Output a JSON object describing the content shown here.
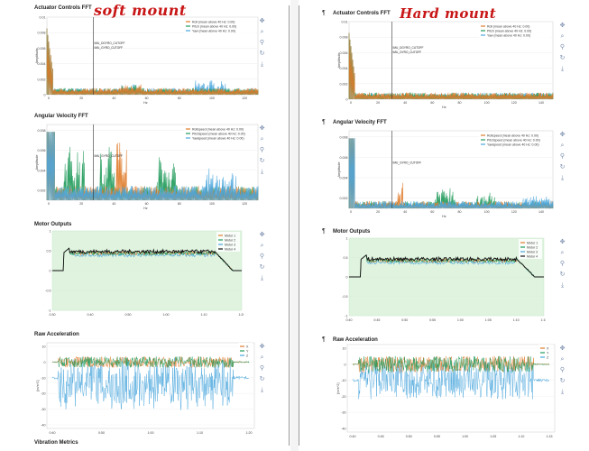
{
  "annotations": {
    "left": "soft mount",
    "right": "Hard mount"
  },
  "pilcrow": "¶",
  "bottom_section_title": "Vibration Metrics",
  "toolbar_icons": [
    "pan-icon",
    "zoom-icon",
    "wheel-zoom-icon",
    "reset-icon",
    "save-icon"
  ],
  "toolbar_glyphs": [
    "✥",
    "⌕",
    "⚲",
    "↻",
    "⤓"
  ],
  "colors": {
    "orange": "#e07b2a",
    "green": "#1f9a5a",
    "blue": "#4aa6dd",
    "black": "#111111",
    "cutoff": "#333333",
    "shade": "#dff3df"
  },
  "left": {
    "panels": [
      {
        "id": "actuator-fft",
        "title": "Actuator Controls FFT",
        "ylabel": "Amplitude",
        "xlabel": "Hz",
        "yticks": [
          "0.01",
          "0.008",
          "0.006",
          "0.004",
          "0.002",
          "0"
        ],
        "xticks": [
          "0",
          "20",
          "40",
          "60",
          "80",
          "100",
          "120"
        ],
        "legend": [
          "Roll (mean above 40 Hz: 0.00)",
          "Pitch (mean above 40 Hz: 0.00)",
          "Yaw (mean above 40 Hz: 0.00)"
        ],
        "cutoff_labels": [
          "IMU_DGYRO_CUTOFF",
          "IMU_GYRO_CUTOFF"
        ]
      },
      {
        "id": "angular-velocity-fft",
        "title": "Angular Velocity FFT",
        "ylabel": "Amplitude",
        "xlabel": "Hz",
        "yticks": [
          "0.008",
          "0.006",
          "0.004",
          "0.002"
        ],
        "xticks": [
          "0",
          "20",
          "40",
          "60",
          "80",
          "100",
          "120"
        ],
        "legend": [
          "Rollspeed (mean above 40 Hz: 0.00)",
          "Pitchspeed (mean above 40 Hz: 0.00)",
          "Yawspeed (mean above 40 Hz: 0.00)"
        ],
        "cutoff_labels": [
          "IMU_GYRO_CUTOFF"
        ]
      },
      {
        "id": "motor-outputs",
        "title": "Motor Outputs",
        "yticks": [
          "1",
          "0.5",
          "0",
          "-0.5",
          "-1"
        ],
        "xticks": [
          "0:30",
          "0:40",
          "0:50",
          "1:00",
          "1:10",
          "1:20"
        ],
        "legend": [
          "Motor 1",
          "Motor 2",
          "Motor 3",
          "Motor 4"
        ]
      },
      {
        "id": "raw-acceleration",
        "title": "Raw Acceleration",
        "ylabel": "[m/s^2]",
        "yticks": [
          "10",
          "0",
          "-10",
          "-20",
          "-30",
          "-40"
        ],
        "xticks": [
          "0:40",
          "0:50",
          "1:00",
          "1:10",
          "1:20"
        ],
        "legend": [
          "X",
          "Y",
          "Z"
        ]
      }
    ]
  },
  "right": {
    "panels": [
      {
        "id": "actuator-fft",
        "title": "Actuator Controls FFT",
        "ylabel": "Amplitude",
        "xlabel": "Hz",
        "yticks": [
          "0.01",
          "0.008",
          "0.006",
          "0.004",
          "0.002",
          "0"
        ],
        "xticks": [
          "0",
          "20",
          "40",
          "60",
          "80",
          "100",
          "120",
          "140"
        ],
        "legend": [
          "Roll (mean above 40 Hz: 0.00)",
          "Pitch (mean above 40 Hz: 0.00)",
          "Yaw (mean above 40 Hz: 0.00)"
        ],
        "cutoff_labels": [
          "IMU_DGYRO_CUTOFF",
          "IMU_GYRO_CUTOFF"
        ]
      },
      {
        "id": "angular-velocity-fft",
        "title": "Angular Velocity FFT",
        "ylabel": "Amplitude",
        "xlabel": "Hz",
        "yticks": [
          "0.008",
          "0.006",
          "0.004",
          "0.002"
        ],
        "xticks": [
          "0",
          "20",
          "40",
          "60",
          "80",
          "100",
          "120",
          "140"
        ],
        "legend": [
          "Rollspeed (mean above 40 Hz: 0.00)",
          "Pitchspeed (mean above 40 Hz: 0.00)",
          "Yawspeed (mean above 40 Hz: 0.00)"
        ],
        "cutoff_labels": [
          "IMU_GYRO_CUTOFF"
        ]
      },
      {
        "id": "motor-outputs",
        "title": "Motor Outputs",
        "yticks": [
          "1",
          "0.5",
          "0",
          "-0.5",
          "-1"
        ],
        "xticks": [
          "0:40",
          "0:45",
          "0:50",
          "0:55",
          "1:00",
          "1:05",
          "1:10",
          "1:15"
        ],
        "legend": [
          "Motor 1",
          "Motor 2",
          "Motor 3",
          "Motor 4"
        ]
      },
      {
        "id": "raw-acceleration",
        "title": "Raw Acceleration",
        "ylabel": "[m/s^2]",
        "yticks": [
          "10",
          "0",
          "-10",
          "-20",
          "-30",
          "-40"
        ],
        "xticks": [
          "0:40",
          "0:45",
          "0:50",
          "0:55",
          "1:00",
          "1:05",
          "1:10",
          "1:15"
        ],
        "legend": [
          "X",
          "Y",
          "Z"
        ]
      }
    ]
  }
}
